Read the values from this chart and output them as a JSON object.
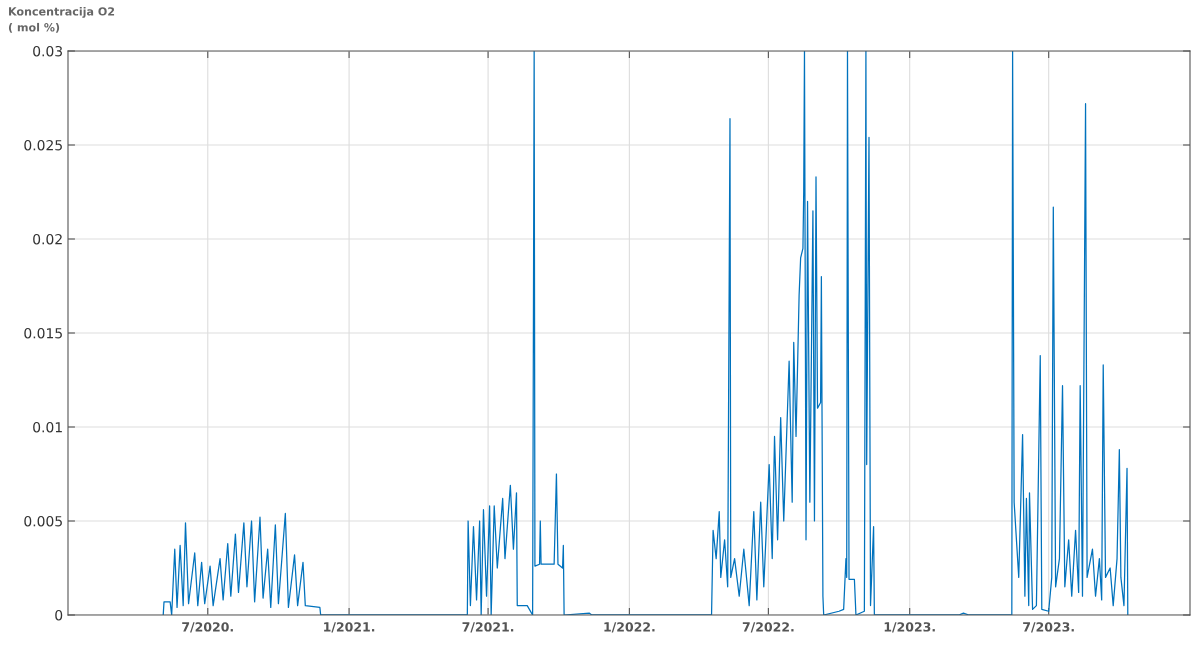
{
  "chart_data": {
    "type": "line",
    "ylabel": "Koncentracija O2\n( mol %)",
    "color": "#0072bd",
    "grid": true,
    "marker": "none",
    "line_style": "solid",
    "xlim": [
      "2020-01-01",
      "2024-01-01"
    ],
    "xticks": [
      {
        "value": "2020-07-01",
        "label": "7/2020."
      },
      {
        "value": "2021-01-01",
        "label": "1/2021."
      },
      {
        "value": "2021-07-01",
        "label": "7/2021."
      },
      {
        "value": "2022-01-01",
        "label": "1/2022."
      },
      {
        "value": "2022-07-01",
        "label": "7/2022."
      },
      {
        "value": "2023-01-01",
        "label": "1/2023."
      },
      {
        "value": "2023-07-01",
        "label": "7/2023."
      }
    ],
    "ylim": [
      0,
      0.03
    ],
    "yticks": [
      0,
      0.005,
      0.01,
      0.015,
      0.02,
      0.025,
      0.03
    ],
    "x": [
      "2020-05-04",
      "2020-05-05",
      "2020-05-13",
      "2020-05-15",
      "2020-05-19",
      "2020-05-22",
      "2020-05-26",
      "2020-05-30",
      "2020-06-02",
      "2020-06-06",
      "2020-06-14",
      "2020-06-18",
      "2020-06-23",
      "2020-06-27",
      "2020-07-04",
      "2020-07-08",
      "2020-07-17",
      "2020-07-21",
      "2020-07-27",
      "2020-07-31",
      "2020-08-06",
      "2020-08-10",
      "2020-08-17",
      "2020-08-21",
      "2020-08-27",
      "2020-08-31",
      "2020-09-07",
      "2020-09-11",
      "2020-09-17",
      "2020-09-21",
      "2020-09-27",
      "2020-10-01",
      "2020-10-10",
      "2020-10-14",
      "2020-10-22",
      "2020-10-26",
      "2020-11-02",
      "2020-11-05",
      "2020-11-24",
      "2020-11-25",
      "2021-06-04",
      "2021-06-05",
      "2021-06-08",
      "2021-06-12",
      "2021-06-16",
      "2021-06-20",
      "2021-06-22",
      "2021-06-25",
      "2021-06-29",
      "2021-07-03",
      "2021-07-05",
      "2021-07-09",
      "2021-07-13",
      "2021-07-20",
      "2021-07-23",
      "2021-07-30",
      "2021-08-03",
      "2021-08-07",
      "2021-08-08",
      "2021-08-21",
      "2021-08-28",
      "2021-08-30",
      "2021-08-31",
      "2021-09-06",
      "2021-09-07",
      "2021-09-08",
      "2021-09-25",
      "2021-09-28",
      "2021-09-30",
      "2021-10-06",
      "2021-10-07",
      "2021-10-08",
      "2021-11-10",
      "2021-11-13",
      "2022-04-18",
      "2022-04-20",
      "2022-04-24",
      "2022-04-28",
      "2022-04-30",
      "2022-05-05",
      "2022-05-09",
      "2022-05-12",
      "2022-05-13",
      "2022-05-18",
      "2022-05-24",
      "2022-05-30",
      "2022-06-06",
      "2022-06-12",
      "2022-06-16",
      "2022-06-21",
      "2022-06-25",
      "2022-07-02",
      "2022-07-06",
      "2022-07-09",
      "2022-07-13",
      "2022-07-17",
      "2022-07-21",
      "2022-07-28",
      "2022-08-01",
      "2022-08-03",
      "2022-08-06",
      "2022-08-10",
      "2022-08-12",
      "2022-08-15",
      "2022-08-16",
      "2022-08-17",
      "2022-08-19",
      "2022-08-21",
      "2022-08-24",
      "2022-08-28",
      "2022-08-30",
      "2022-09-01",
      "2022-09-03",
      "2022-09-07",
      "2022-09-08",
      "2022-09-10",
      "2022-09-11",
      "2022-10-01",
      "2022-10-07",
      "2022-10-10",
      "2022-10-11",
      "2022-10-12",
      "2022-10-14",
      "2022-10-21",
      "2022-10-23",
      "2022-11-03",
      "2022-11-05",
      "2022-11-06",
      "2022-11-09",
      "2022-11-11",
      "2022-11-15",
      "2022-11-16",
      "2023-03-06",
      "2023-03-12",
      "2023-03-19",
      "2023-05-14",
      "2023-05-15",
      "2023-05-17",
      "2023-05-23",
      "2023-05-28",
      "2023-05-31",
      "2023-06-02",
      "2023-06-05",
      "2023-06-06",
      "2023-06-10",
      "2023-06-15",
      "2023-06-20",
      "2023-06-22",
      "2023-07-01",
      "2023-07-05",
      "2023-07-07",
      "2023-07-10",
      "2023-07-15",
      "2023-07-19",
      "2023-07-22",
      "2023-07-27",
      "2023-07-31",
      "2023-08-05",
      "2023-08-09",
      "2023-08-11",
      "2023-08-14",
      "2023-08-18",
      "2023-08-20",
      "2023-08-27",
      "2023-08-31",
      "2023-09-05",
      "2023-09-08",
      "2023-09-10",
      "2023-09-13",
      "2023-09-19",
      "2023-09-23",
      "2023-09-28",
      "2023-10-01",
      "2023-10-03",
      "2023-10-07",
      "2023-10-11",
      "2023-10-12"
    ],
    "values": [
      0,
      0.0007,
      0.0007,
      0,
      0.0035,
      0.0004,
      0.0037,
      0.0005,
      0.0049,
      0.0006,
      0.0033,
      0.0005,
      0.0028,
      0.0006,
      0.0026,
      0.0005,
      0.003,
      0.0008,
      0.0038,
      0.001,
      0.0043,
      0.0012,
      0.0049,
      0.0015,
      0.005,
      0.0007,
      0.0052,
      0.0009,
      0.0035,
      0.0004,
      0.0048,
      0.0006,
      0.0054,
      0.0004,
      0.0032,
      0.0005,
      0.0028,
      0.0005,
      0.0004,
      0,
      0,
      0.005,
      0.0005,
      0.0047,
      0.0008,
      0.005,
      0,
      0.0056,
      0.001,
      0.0058,
      0,
      0.0058,
      0.0025,
      0.0062,
      0.003,
      0.0069,
      0.0035,
      0.0065,
      0.0005,
      0.0005,
      0,
      0.03,
      0.0026,
      0.0027,
      0.005,
      0.0027,
      0.0027,
      0.0075,
      0.0027,
      0.0025,
      0.0037,
      0,
      0.0001,
      0,
      0,
      0.0045,
      0.003,
      0.0055,
      0.002,
      0.004,
      0.0015,
      0.0264,
      0.002,
      0.003,
      0.001,
      0.0035,
      0.0005,
      0.0055,
      0.0008,
      0.006,
      0.0015,
      0.008,
      0.003,
      0.0095,
      0.004,
      0.0105,
      0.005,
      0.0135,
      0.006,
      0.0145,
      0.0095,
      0.017,
      0.019,
      0.0195,
      0.0225,
      0.03,
      0.004,
      0.022,
      0.006,
      0.0215,
      0.005,
      0.0233,
      0.011,
      0.0113,
      0.018,
      0.001,
      0,
      0.0002,
      0.0003,
      0.003,
      0.002,
      0.03,
      0.0019,
      0.0019,
      0,
      0.0002,
      0.03,
      0.008,
      0.0254,
      0.0005,
      0.0047,
      0,
      0,
      0.0001,
      0,
      0,
      0.03,
      0.006,
      0.002,
      0.0096,
      0.001,
      0.0062,
      0.0005,
      0.0065,
      0.0003,
      0.0005,
      0.0138,
      0.0003,
      0.0002,
      0.002,
      0.0217,
      0.0015,
      0.003,
      0.0122,
      0.0015,
      0.004,
      0.001,
      0.0045,
      0.0012,
      0.0122,
      0.001,
      0.0272,
      0.002,
      0.0035,
      0.001,
      0.003,
      0.0008,
      0.0133,
      0.002,
      0.0025,
      0.0005,
      0.003,
      0.0088,
      0.002,
      0.0005,
      0.0078,
      0
    ]
  }
}
